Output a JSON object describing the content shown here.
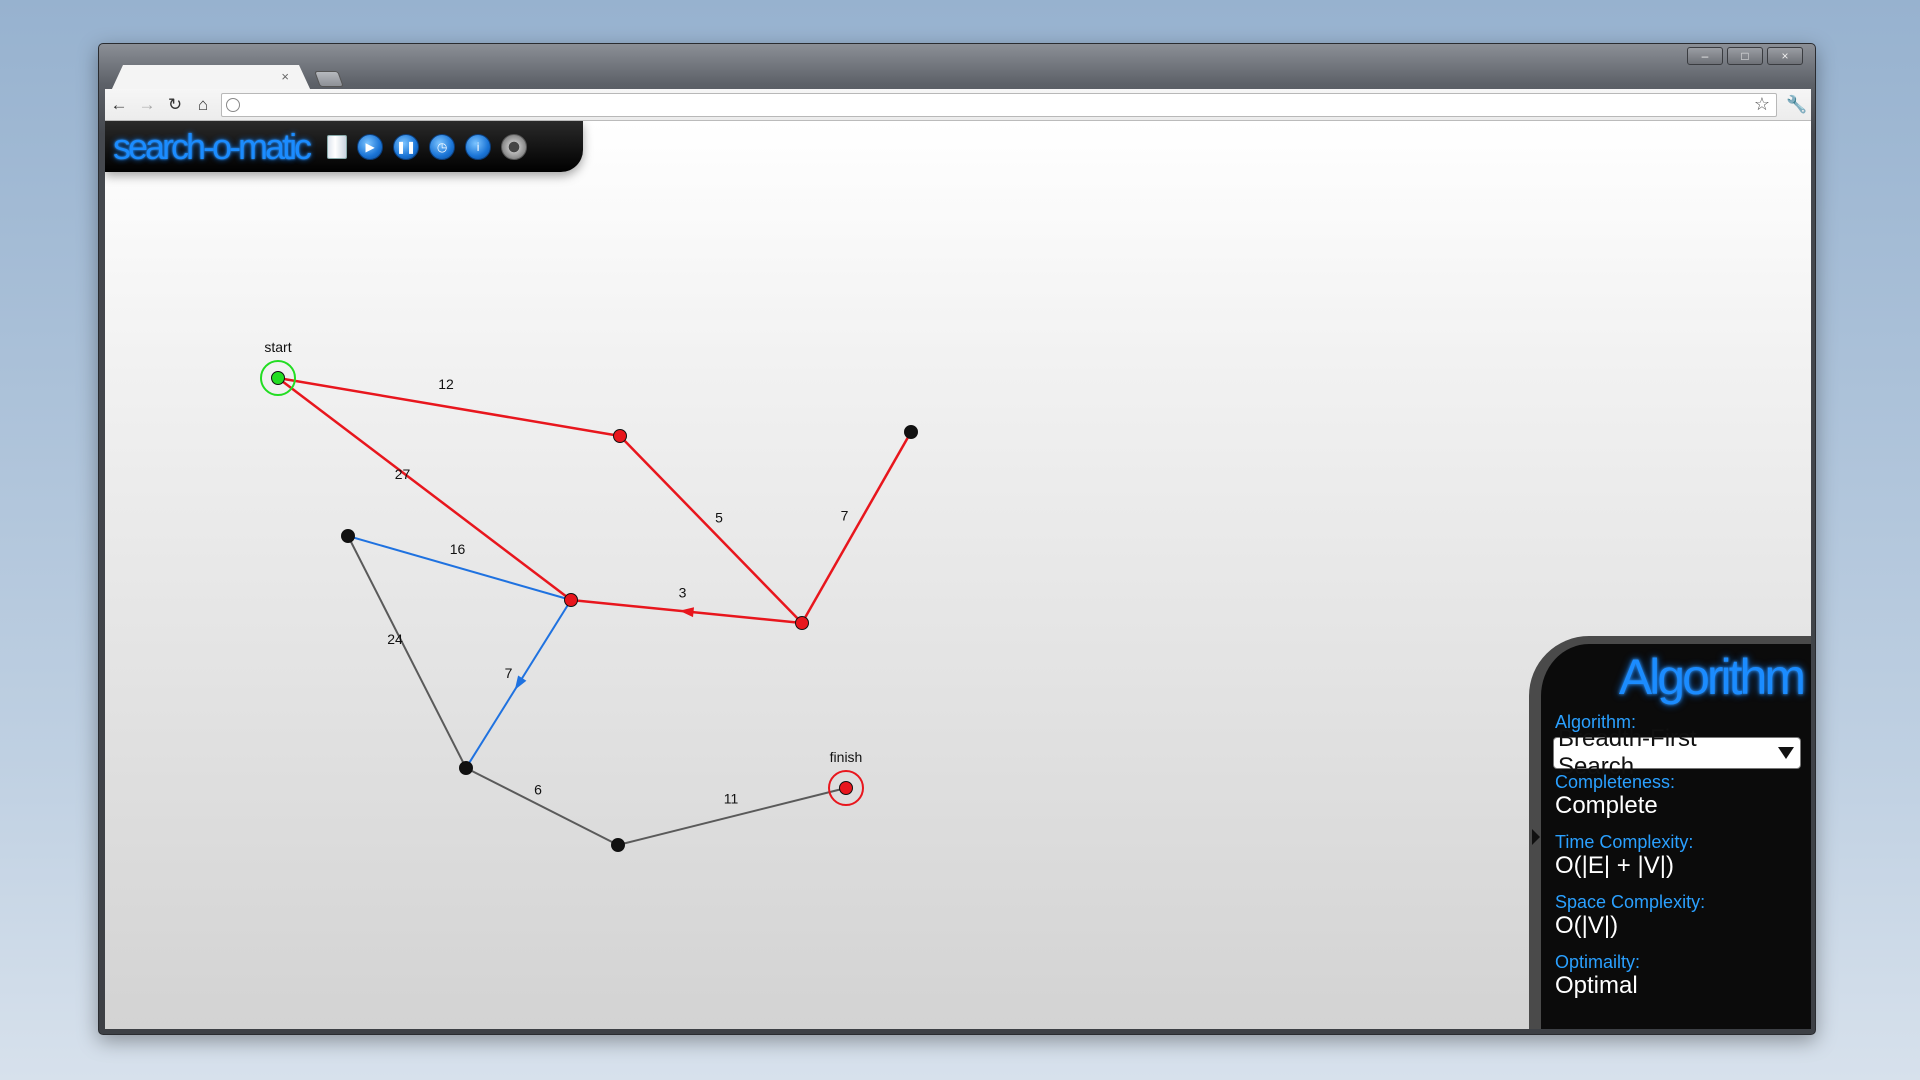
{
  "app": {
    "name": "search-o-matic"
  },
  "browser": {
    "tab": {
      "close": "×"
    },
    "address": {
      "value": "",
      "placeholder": ""
    }
  },
  "toolbar": {
    "controls": [
      "document-icon",
      "play-icon",
      "pause-icon",
      "history-icon",
      "info-icon",
      "gear-icon"
    ]
  },
  "graph": {
    "nodes": [
      {
        "id": "start",
        "label": "start",
        "state": "start"
      },
      {
        "id": "a",
        "label": "",
        "state": "visited"
      },
      {
        "id": "b",
        "label": "",
        "state": "unvisited"
      },
      {
        "id": "c",
        "label": "",
        "state": "visited"
      },
      {
        "id": "d",
        "label": "",
        "state": "visited"
      },
      {
        "id": "e",
        "label": "",
        "state": "unvisited"
      },
      {
        "id": "f",
        "label": "",
        "state": "unvisited"
      },
      {
        "id": "g",
        "label": "",
        "state": "unvisited"
      },
      {
        "id": "finish",
        "label": "finish",
        "state": "finish"
      }
    ],
    "edges": [
      {
        "from": "start",
        "to": "a",
        "weight": "12",
        "state": "visited"
      },
      {
        "from": "start",
        "to": "d",
        "weight": "27",
        "state": "visited"
      },
      {
        "from": "a",
        "to": "c",
        "weight": "5",
        "state": "visited"
      },
      {
        "from": "b",
        "to": "c",
        "weight": "7",
        "state": "visited"
      },
      {
        "from": "c",
        "to": "d",
        "weight": "3",
        "state": "visited",
        "arrow": true
      },
      {
        "from": "e",
        "to": "d",
        "weight": "16",
        "state": "frontier"
      },
      {
        "from": "d",
        "to": "f",
        "weight": "7",
        "state": "frontier",
        "arrow": true
      },
      {
        "from": "e",
        "to": "f",
        "weight": "24",
        "state": "unvisited"
      },
      {
        "from": "f",
        "to": "g",
        "weight": "6",
        "state": "unvisited"
      },
      {
        "from": "g",
        "to": "finish",
        "weight": "11",
        "state": "unvisited"
      }
    ],
    "colors": {
      "visited": "#e8161d",
      "frontier": "#1f72e0",
      "unvisited": "#5a5a5a",
      "start": "#22dd22",
      "finish": "#e8161d"
    }
  },
  "panel": {
    "title": "Algorithm",
    "algorithm_label": "Algorithm:",
    "algorithm_value": "Breadth-First Search",
    "completeness_label": "Completeness:",
    "completeness_value": "Complete",
    "time_label": "Time Complexity:",
    "time_value": "O(|E| + |V|)",
    "space_label": "Space Complexity:",
    "space_value": "O(|V|)",
    "optimality_label": "Optimailty:",
    "optimality_value": "Optimal"
  }
}
